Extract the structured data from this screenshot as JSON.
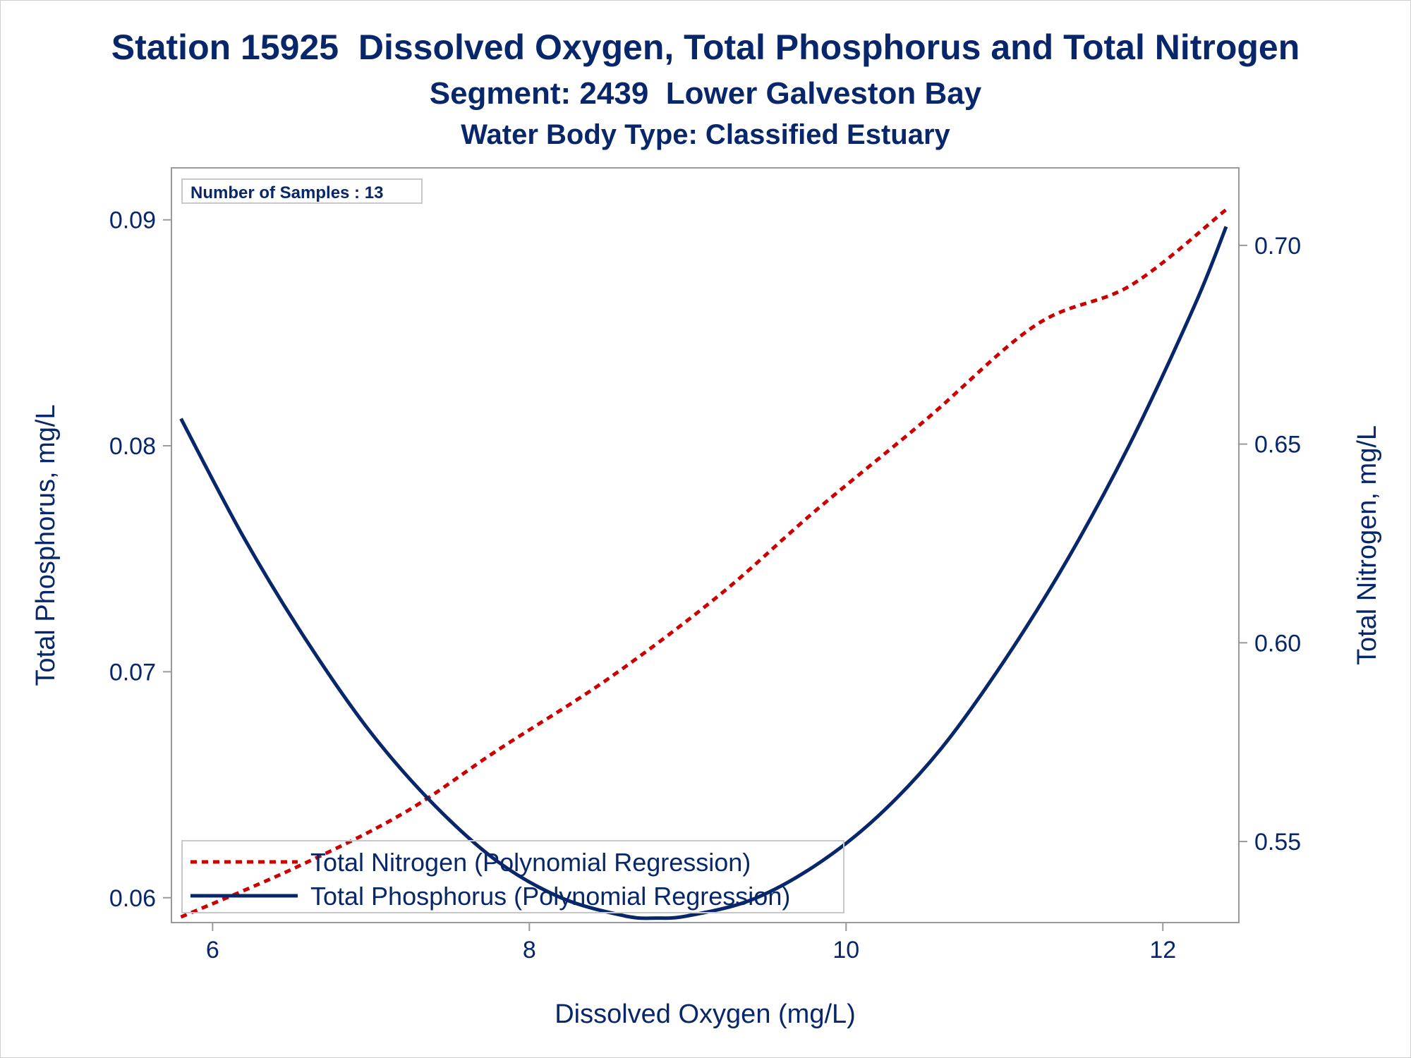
{
  "titles": {
    "line1": "Station 15925  Dissolved Oxygen, Total Phosphorus and Total Nitrogen",
    "line2": "Segment: 2439  Lower Galveston Bay",
    "line3": "Water Body Type: Classified Estuary"
  },
  "inset": {
    "samples_label": "Number of Samples : 13"
  },
  "colors": {
    "text": "#08276b",
    "nitrogen": "#cc0000",
    "phosphorus": "#08276b",
    "frame": "#999999"
  },
  "chart_data": {
    "type": "line",
    "xlabel": "Dissolved Oxygen (mg/L)",
    "ylabel": "Total Phosphorus, mg/L",
    "y2label": "Total Nitrogen, mg/L",
    "xlim": [
      5.74,
      12.48
    ],
    "ylim": [
      0.0589,
      0.0923
    ],
    "y2lim": [
      0.5296,
      0.7195
    ],
    "x_ticks": [
      6,
      8,
      10,
      12
    ],
    "x_tick_labels": [
      "6",
      "8",
      "10",
      "12"
    ],
    "y_ticks": [
      0.06,
      0.07,
      0.08,
      0.09
    ],
    "y_tick_labels": [
      "0.06",
      "0.07",
      "0.08",
      "0.09"
    ],
    "y2_ticks": [
      0.55,
      0.6,
      0.65,
      0.7
    ],
    "y2_tick_labels": [
      "0.55",
      "0.60",
      "0.65",
      "0.70"
    ],
    "legend_position": "bottom-left",
    "series": [
      {
        "name": "Total Nitrogen (Polynomial Regression)",
        "axis": "right",
        "style": "dashed",
        "x": [
          5.8,
          6.5,
          7.2,
          7.8,
          8.5,
          9.2,
          9.8,
          10.5,
          11.2,
          11.8,
          12.4
        ],
        "y": [
          0.531,
          0.543,
          0.557,
          0.573,
          0.591,
          0.612,
          0.633,
          0.656,
          0.68,
          0.69,
          0.709
        ]
      },
      {
        "name": "Total Phosphorus (Polynomial Regression)",
        "axis": "left",
        "style": "solid",
        "x": [
          5.8,
          6.2,
          6.6,
          7.0,
          7.4,
          7.8,
          8.2,
          8.6,
          8.8,
          9.0,
          9.4,
          9.8,
          10.2,
          10.6,
          11.0,
          11.4,
          11.8,
          12.2,
          12.4
        ],
        "y": [
          0.0812,
          0.0759,
          0.0713,
          0.0673,
          0.0641,
          0.0616,
          0.06,
          0.0592,
          0.0591,
          0.0592,
          0.0599,
          0.0614,
          0.0636,
          0.0666,
          0.0705,
          0.075,
          0.0802,
          0.0862,
          0.0897
        ]
      }
    ]
  }
}
